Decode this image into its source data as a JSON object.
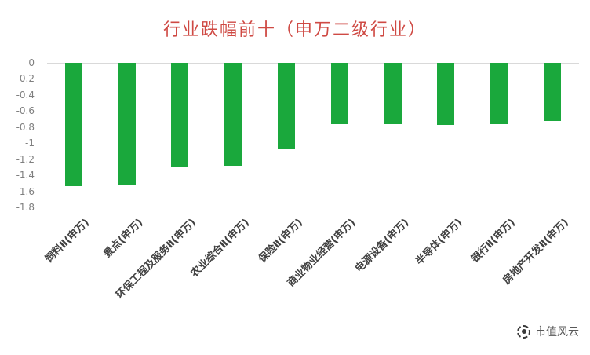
{
  "chart_data": {
    "type": "bar",
    "title": "行业跌幅前十（申万二级行业）",
    "title_color": "#cf4a44",
    "categories": [
      "饲料Ⅱ(申万)",
      "景点(申万)",
      "环保工程及服务Ⅱ(申万)",
      "农业综合Ⅱ(申万)",
      "保险Ⅱ(申万)",
      "商业物业经营(申万)",
      "电源设备(申万)",
      "半导体(申万)",
      "银行Ⅱ(申万)",
      "房地产开发Ⅱ(申万)"
    ],
    "values": [
      -1.54,
      -1.53,
      -1.3,
      -1.28,
      -1.08,
      -0.76,
      -0.76,
      -0.77,
      -0.76,
      -0.72
    ],
    "ylim": [
      -1.8,
      0
    ],
    "yticks": [
      0,
      -0.2,
      -0.4,
      -0.6,
      -0.8,
      -1,
      -1.2,
      -1.4,
      -1.6,
      -1.8
    ],
    "bar_color": "#1aa83c",
    "grid": false,
    "legend": false,
    "xlabel": "",
    "ylabel": ""
  },
  "watermark": {
    "text": "市值风云",
    "logo": "shizhi-fengyun-logo-icon"
  }
}
